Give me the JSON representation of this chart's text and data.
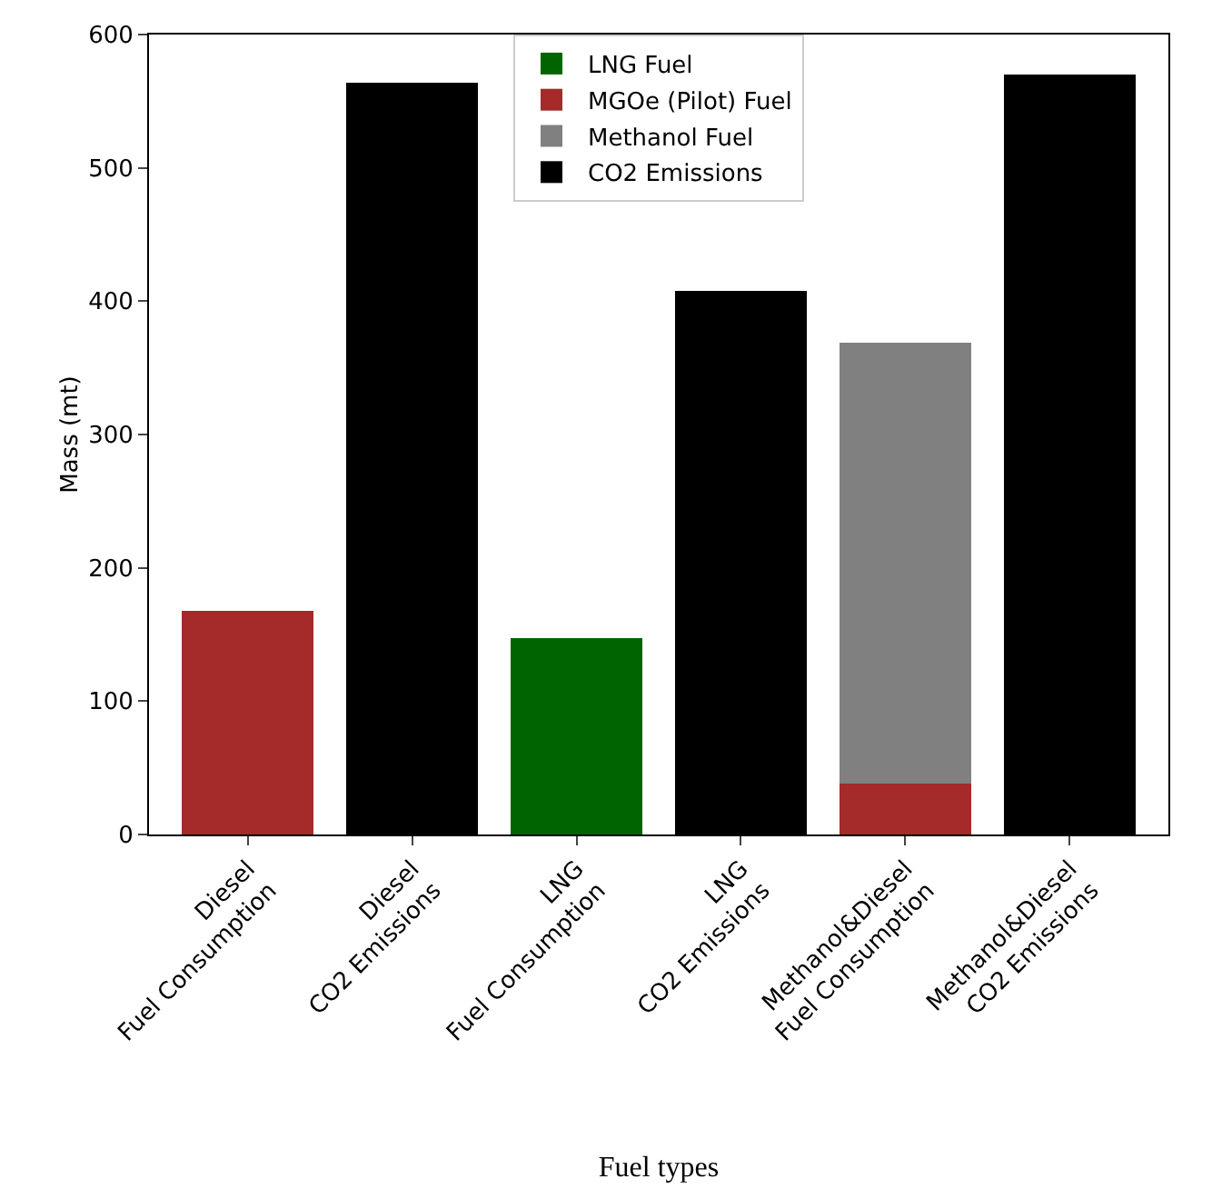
{
  "chart_data": {
    "type": "bar",
    "xlabel": "Fuel types",
    "ylabel": "Mass (mt)",
    "stacked": true,
    "categories": [
      "Diesel\nFuel Consumption",
      "Diesel\nCO2 Emissions",
      "LNG\nFuel Consumption",
      "LNG\nCO2 Emissions",
      "Methanol&Diesel\nFuel Consumption",
      "Methanol&Diesel\nCO2 Emissions"
    ],
    "series": [
      {
        "name": "LNG Fuel",
        "color": "#006400",
        "values": [
          null,
          null,
          147,
          null,
          null,
          null
        ]
      },
      {
        "name": "MGOe (Pilot) Fuel",
        "color": "#a52a2a",
        "values": [
          168,
          null,
          null,
          null,
          38,
          null
        ]
      },
      {
        "name": "Methanol Fuel",
        "color": "#808080",
        "values": [
          null,
          null,
          null,
          null,
          331,
          null
        ]
      },
      {
        "name": "CO2 Emissions",
        "color": "#000000",
        "values": [
          null,
          564,
          null,
          408,
          null,
          570
        ]
      }
    ],
    "ylim": [
      0,
      600
    ],
    "yticks": [
      0,
      100,
      200,
      300,
      400,
      500,
      600
    ],
    "grid": false,
    "legend": "top"
  }
}
